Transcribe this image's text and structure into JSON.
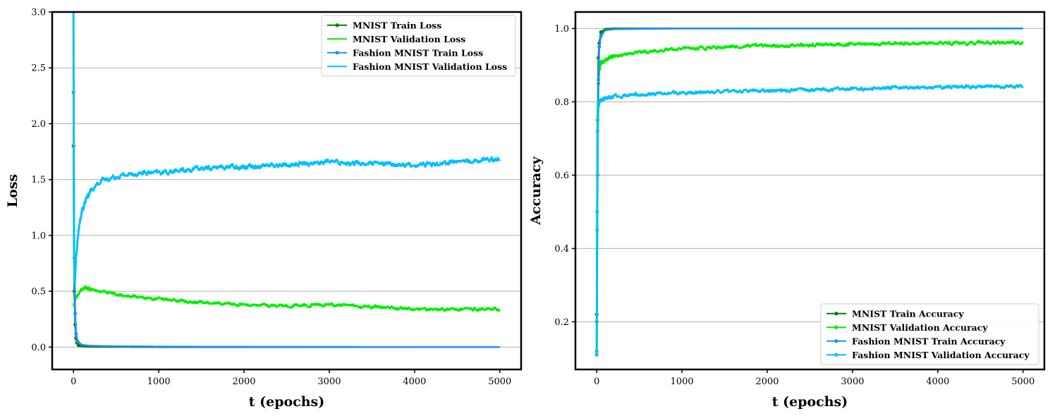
{
  "chart_data": [
    {
      "type": "line",
      "title": "",
      "xlabel": "t (epochs)",
      "ylabel": "Loss",
      "xlim": [
        -250,
        5250
      ],
      "ylim": [
        -0.2,
        3.0
      ],
      "xticks": [
        0,
        1000,
        2000,
        3000,
        4000,
        5000
      ],
      "yticks": [
        0.0,
        0.5,
        1.0,
        1.5,
        2.0,
        2.5,
        3.0
      ],
      "ytick_decimals": 1,
      "grid": "y",
      "legend_position": "top-right",
      "series": [
        {
          "name": "MNIST Train Loss",
          "color": "#008000",
          "marker": "dot",
          "x": [
            0,
            10,
            20,
            30,
            40,
            60,
            100,
            200,
            500,
            1000,
            2000,
            3000,
            4000,
            5000
          ],
          "y": [
            1.8,
            0.5,
            0.2,
            0.08,
            0.04,
            0.015,
            0.006,
            0.003,
            0.002,
            0.001,
            0.0005,
            0.0003,
            0.0002,
            0.0001
          ]
        },
        {
          "name": "MNIST Validation Loss",
          "color": "#00ee00",
          "marker": "none",
          "noise": 0.012,
          "x": [
            0,
            20,
            50,
            100,
            150,
            200,
            300,
            500,
            1000,
            1500,
            2000,
            2500,
            3000,
            3500,
            4000,
            4500,
            5000
          ],
          "y": [
            0.37,
            0.42,
            0.47,
            0.52,
            0.53,
            0.52,
            0.5,
            0.47,
            0.43,
            0.4,
            0.38,
            0.37,
            0.38,
            0.36,
            0.34,
            0.34,
            0.34
          ]
        },
        {
          "name": "Fashion MNIST Train Loss",
          "color": "#1e90ff",
          "marker": "dot",
          "x": [
            0,
            10,
            20,
            30,
            50,
            100,
            200,
            500,
            1000,
            2000,
            3000,
            4000,
            5000
          ],
          "y": [
            2.28,
            0.8,
            0.3,
            0.12,
            0.05,
            0.02,
            0.012,
            0.008,
            0.005,
            0.003,
            0.002,
            0.001,
            0.001
          ]
        },
        {
          "name": "Fashion MNIST Validation Loss",
          "color": "#00bfff",
          "marker": "none",
          "noise": 0.02,
          "x": [
            0,
            5,
            15,
            30,
            60,
            100,
            150,
            200,
            300,
            500,
            800,
            1000,
            1500,
            2000,
            2500,
            3000,
            3500,
            4000,
            4500,
            5000
          ],
          "y": [
            3.0,
            0.9,
            0.55,
            0.8,
            1.05,
            1.22,
            1.32,
            1.4,
            1.48,
            1.53,
            1.56,
            1.56,
            1.6,
            1.62,
            1.63,
            1.66,
            1.64,
            1.63,
            1.66,
            1.69
          ]
        }
      ]
    },
    {
      "type": "line",
      "title": "",
      "xlabel": "t (epochs)",
      "ylabel": "Accuracy",
      "xlim": [
        -250,
        5250
      ],
      "ylim": [
        0.07,
        1.045
      ],
      "xticks": [
        0,
        1000,
        2000,
        3000,
        4000,
        5000
      ],
      "yticks": [
        0.2,
        0.4,
        0.6,
        0.8,
        1.0
      ],
      "ytick_decimals": 1,
      "grid": "y",
      "legend_position": "bottom-right",
      "series": [
        {
          "name": "MNIST Train Accuracy",
          "color": "#008000",
          "marker": "dot",
          "x": [
            0,
            10,
            20,
            30,
            50,
            100,
            200,
            500,
            1000,
            5000
          ],
          "y": [
            0.22,
            0.75,
            0.92,
            0.96,
            0.99,
            0.999,
            1.0,
            1.0,
            1.0,
            1.0
          ]
        },
        {
          "name": "MNIST Validation Accuracy",
          "color": "#00ee00",
          "marker": "dot",
          "noise": 0.004,
          "x": [
            0,
            5,
            10,
            20,
            30,
            50,
            100,
            200,
            500,
            1000,
            1500,
            2000,
            3000,
            4000,
            5000
          ],
          "y": [
            0.12,
            0.5,
            0.75,
            0.86,
            0.89,
            0.905,
            0.915,
            0.925,
            0.935,
            0.945,
            0.95,
            0.953,
            0.957,
            0.96,
            0.962
          ]
        },
        {
          "name": "Fashion MNIST Train Accuracy",
          "color": "#1e90ff",
          "marker": "dot",
          "x": [
            0,
            10,
            20,
            30,
            50,
            100,
            200,
            500,
            1000,
            5000
          ],
          "y": [
            0.2,
            0.6,
            0.85,
            0.95,
            0.98,
            0.995,
            0.998,
            0.999,
            1.0,
            1.0
          ]
        },
        {
          "name": "Fashion MNIST Validation Accuracy",
          "color": "#00bfff",
          "marker": "dot",
          "noise": 0.004,
          "x": [
            0,
            5,
            10,
            20,
            30,
            50,
            100,
            200,
            500,
            1000,
            1500,
            2000,
            2500,
            3000,
            3500,
            4000,
            4500,
            5000
          ],
          "y": [
            0.11,
            0.45,
            0.72,
            0.79,
            0.8,
            0.805,
            0.81,
            0.815,
            0.82,
            0.825,
            0.828,
            0.83,
            0.832,
            0.835,
            0.838,
            0.84,
            0.842,
            0.842
          ]
        }
      ]
    }
  ]
}
